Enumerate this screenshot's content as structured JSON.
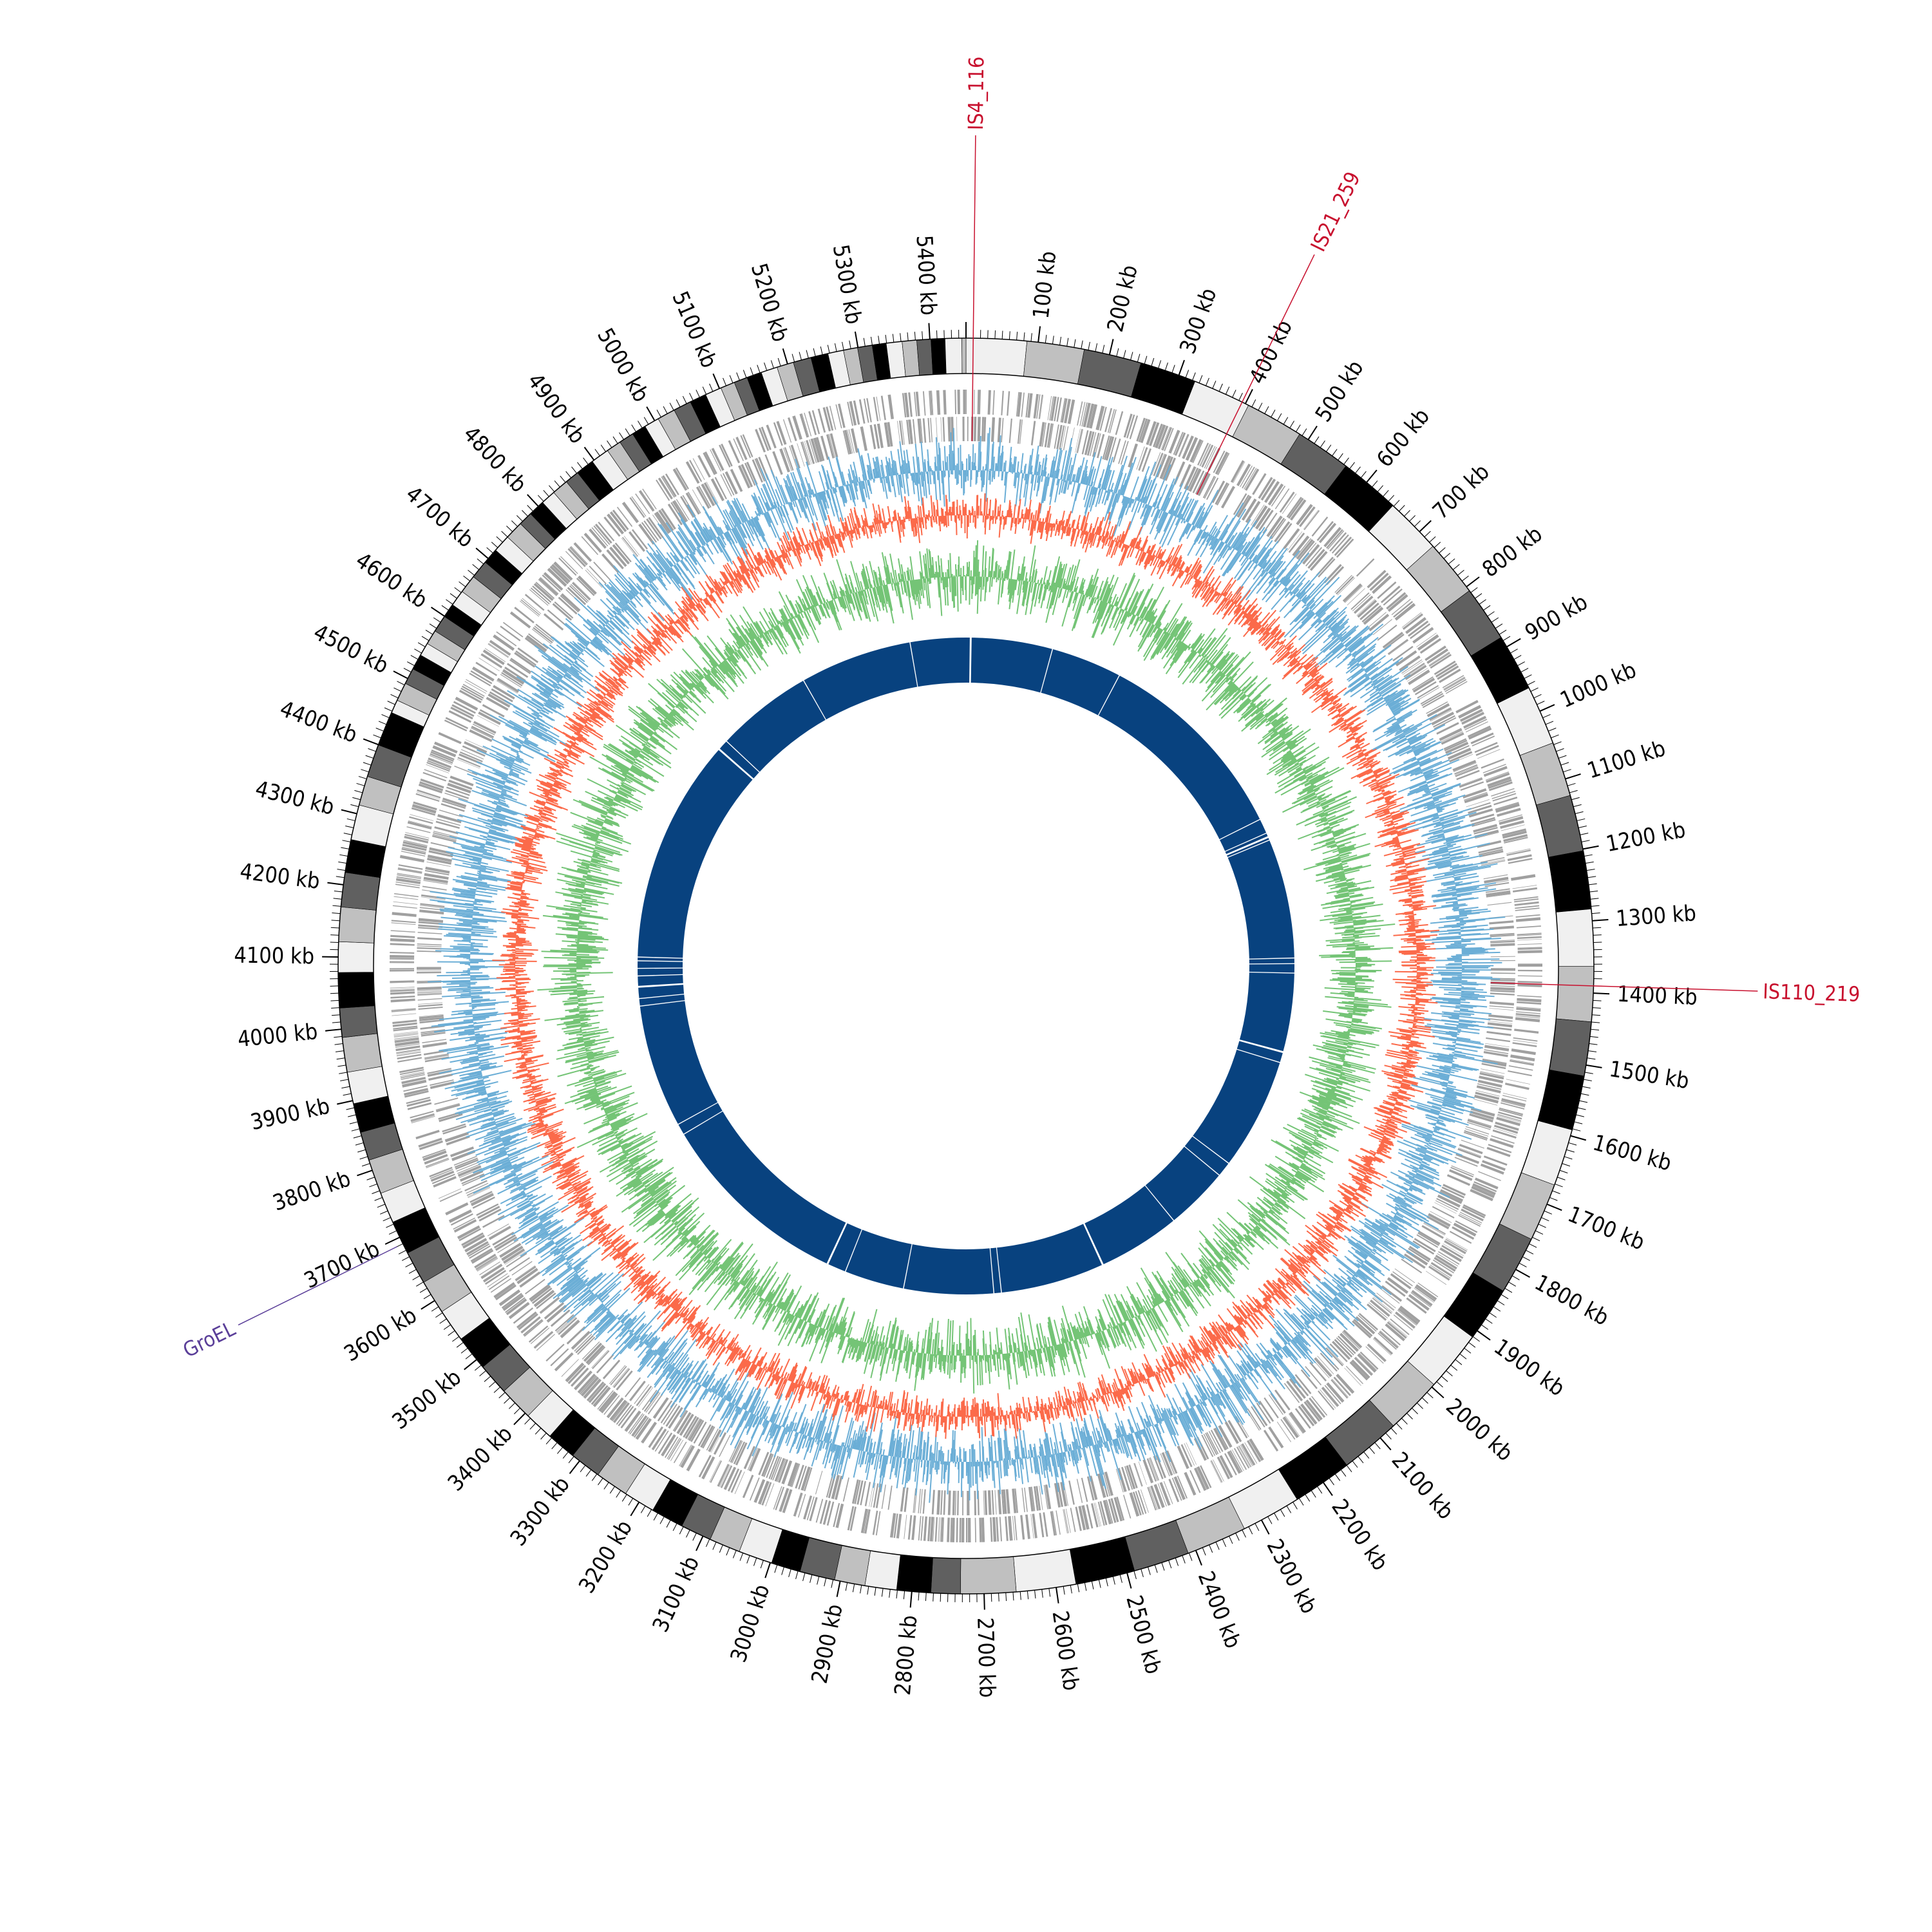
{
  "genome": {
    "length_kb": 5450,
    "tick_unit": "kb",
    "tick_interval_kb": 100,
    "minor_tick_interval_kb": 10,
    "tick_labels": [
      "100 kb",
      "200 kb",
      "300 kb",
      "400 kb",
      "500 kb",
      "600 kb",
      "700 kb",
      "800 kb",
      "900 kb",
      "1000 kb",
      "1100 kb",
      "1200 kb",
      "1300 kb",
      "1400 kb",
      "1500 kb",
      "1600 kb",
      "1700 kb",
      "1800 kb",
      "1900 kb",
      "2000 kb",
      "2100 kb",
      "2200 kb",
      "2300 kb",
      "2400 kb",
      "2500 kb",
      "2600 kb",
      "2700 kb",
      "2800 kb",
      "2900 kb",
      "3000 kb",
      "3100 kb",
      "3200 kb",
      "3300 kb",
      "3400 kb",
      "3500 kb",
      "3600 kb",
      "3700 kb",
      "3800 kb",
      "3900 kb",
      "4000 kb",
      "4100 kb",
      "4200 kb",
      "4300 kb",
      "4400 kb",
      "4500 kb",
      "4600 kb",
      "4700 kb",
      "4800 kb",
      "4900 kb",
      "5000 kb",
      "5100 kb",
      "5200 kb",
      "5300 kb",
      "5400 kb"
    ]
  },
  "annotations": [
    {
      "label": "IS4_116",
      "position_kb": 10,
      "color": "#c8102e"
    },
    {
      "label": "IS21_259",
      "position_kb": 395,
      "color": "#c8102e"
    },
    {
      "label": "IS110_219",
      "position_kb": 1390,
      "color": "#c8102e"
    },
    {
      "label": "GroEL",
      "position_kb": 3690,
      "color": "#5b3f99"
    }
  ],
  "tracks": {
    "ideogram": {
      "colors": [
        "#f0f0f0",
        "#c0c0c0",
        "#606060",
        "#000000"
      ],
      "description_hidden": true
    },
    "genes": {
      "color": "#a0a0a0"
    },
    "gc_skew": {
      "color": "#6baed6"
    },
    "gc_content": {
      "color": "#fb6a4a"
    },
    "coverage": {
      "color": "#74c476"
    },
    "synteny_blocks": {
      "color": "#08427f"
    }
  }
}
